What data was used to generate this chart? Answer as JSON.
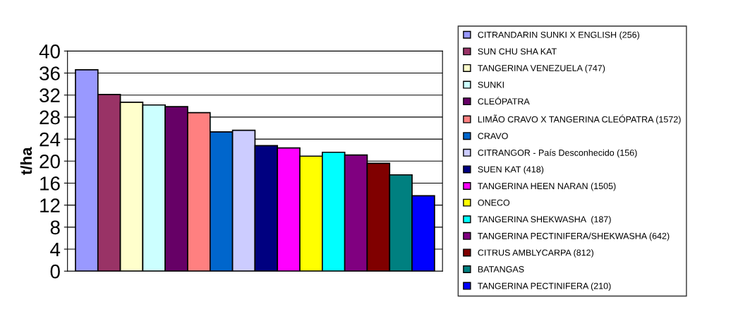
{
  "chart_data": {
    "type": "bar",
    "ylabel": "t/ha",
    "categories": [
      null
    ],
    "ylim": [
      0,
      40
    ],
    "yticks": [
      0,
      4,
      8,
      12,
      16,
      20,
      24,
      28,
      32,
      36,
      40
    ],
    "grid": "y",
    "legend": "right",
    "series": [
      {
        "name": "CITRANDARIN SUNKI X ENGLISH (256)",
        "color": "#9999ff",
        "values": [
          36.6
        ]
      },
      {
        "name": "SUN CHU SHA KAT",
        "color": "#993366",
        "values": [
          32.1
        ]
      },
      {
        "name": "TANGERINA VENEZUELA (747)",
        "color": "#ffffcc",
        "values": [
          30.7
        ]
      },
      {
        "name": "SUNKI",
        "color": "#ccffff",
        "values": [
          30.2
        ]
      },
      {
        "name": "CLEÓPATRA",
        "color": "#660066",
        "values": [
          29.9
        ]
      },
      {
        "name": "LIMÃO CRAVO X TANGERINA CLEÓPATRA (1572)",
        "color": "#ff8080",
        "values": [
          28.8
        ]
      },
      {
        "name": "CRAVO",
        "color": "#0066cc",
        "values": [
          25.3
        ]
      },
      {
        "name": "CITRANGOR - País Desconhecido (156)",
        "color": "#ccccff",
        "values": [
          25.6
        ]
      },
      {
        "name": "SUEN KAT (418)",
        "color": "#000080",
        "values": [
          22.8
        ]
      },
      {
        "name": "TANGERINA HEEN NARAN (1505)",
        "color": "#ff00ff",
        "values": [
          22.4
        ]
      },
      {
        "name": "ONECO",
        "color": "#ffff00",
        "values": [
          20.9
        ]
      },
      {
        "name": "TANGERINA SHEKWASHA  (187)",
        "color": "#00ffff",
        "values": [
          21.6
        ]
      },
      {
        "name": "TANGERINA PECTINIFERA/SHEKWASHA (642)",
        "color": "#800080",
        "values": [
          21.1
        ]
      },
      {
        "name": "CITRUS AMBLYCARPA (812)",
        "color": "#800000",
        "values": [
          19.6
        ]
      },
      {
        "name": "BATANGAS",
        "color": "#008080",
        "values": [
          17.5
        ]
      },
      {
        "name": "TANGERINA PECTINIFERA (210)",
        "color": "#0000ff",
        "values": [
          13.7
        ]
      }
    ]
  }
}
